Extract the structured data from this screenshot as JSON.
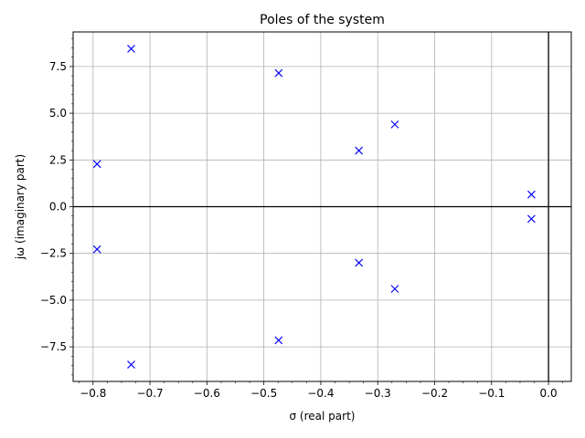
{
  "chart_data": {
    "type": "scatter",
    "title": "Poles of the system",
    "xlabel": "σ (real part)",
    "ylabel": "jω (imaginary part)",
    "xlim": [
      -0.835,
      0.04
    ],
    "ylim": [
      -9.35,
      9.35
    ],
    "x_ticks": [
      -0.8,
      -0.7,
      -0.6,
      -0.5,
      -0.4,
      -0.3,
      -0.2,
      -0.1,
      0.0
    ],
    "x_tick_labels": [
      "−0.8",
      "−0.7",
      "−0.6",
      "−0.5",
      "−0.4",
      "−0.3",
      "−0.2",
      "−0.1",
      "0.0"
    ],
    "y_ticks": [
      -7.5,
      -5.0,
      -2.5,
      0.0,
      2.5,
      5.0,
      7.5
    ],
    "y_tick_labels": [
      "−7.5",
      "−5.0",
      "−2.5",
      "0.0",
      "2.5",
      "5.0",
      "7.5"
    ],
    "grid": true,
    "marker": "x",
    "marker_color": "#0000ff",
    "axis_lines_color": "#000000",
    "points": [
      {
        "x": -0.733,
        "y": 8.45
      },
      {
        "x": -0.733,
        "y": -8.45
      },
      {
        "x": -0.474,
        "y": 7.15
      },
      {
        "x": -0.474,
        "y": -7.15
      },
      {
        "x": -0.27,
        "y": 4.4
      },
      {
        "x": -0.27,
        "y": -4.4
      },
      {
        "x": -0.333,
        "y": 3.0
      },
      {
        "x": -0.333,
        "y": -3.0
      },
      {
        "x": -0.793,
        "y": 2.28
      },
      {
        "x": -0.793,
        "y": -2.28
      },
      {
        "x": -0.03,
        "y": 0.65
      },
      {
        "x": -0.03,
        "y": -0.65
      }
    ]
  }
}
